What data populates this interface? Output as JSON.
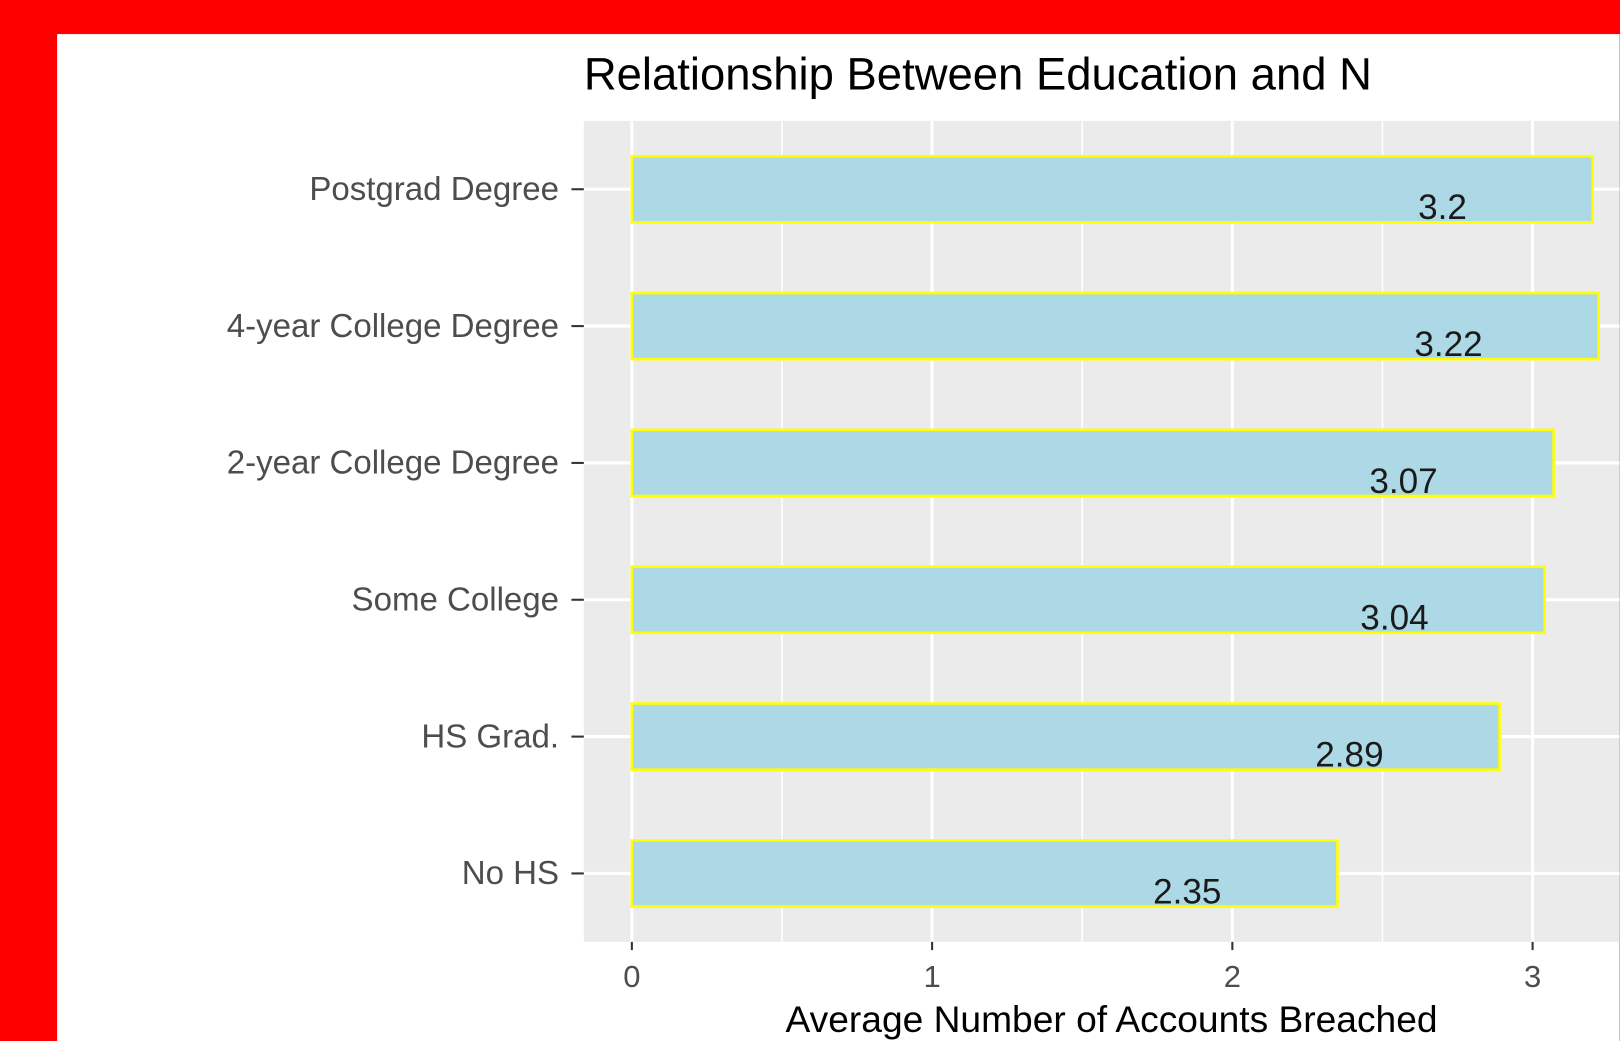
{
  "chart_data": {
    "type": "bar",
    "orientation": "horizontal",
    "title": "Relationship Between Education and N",
    "x_label": "Average Number of Accounts Breached",
    "categories": [
      "Postgrad Degree",
      "4-year College Degree",
      "2-year College Degree",
      "Some College",
      "HS Grad.",
      "No HS"
    ],
    "values": [
      3.2,
      3.22,
      3.07,
      3.04,
      2.89,
      2.35
    ],
    "color": "#add8e6",
    "edge_color": "#ffff00",
    "xlim": [
      -0.16,
      3.29
    ],
    "xticks": [
      0,
      1,
      2,
      3
    ],
    "grid": true
  }
}
